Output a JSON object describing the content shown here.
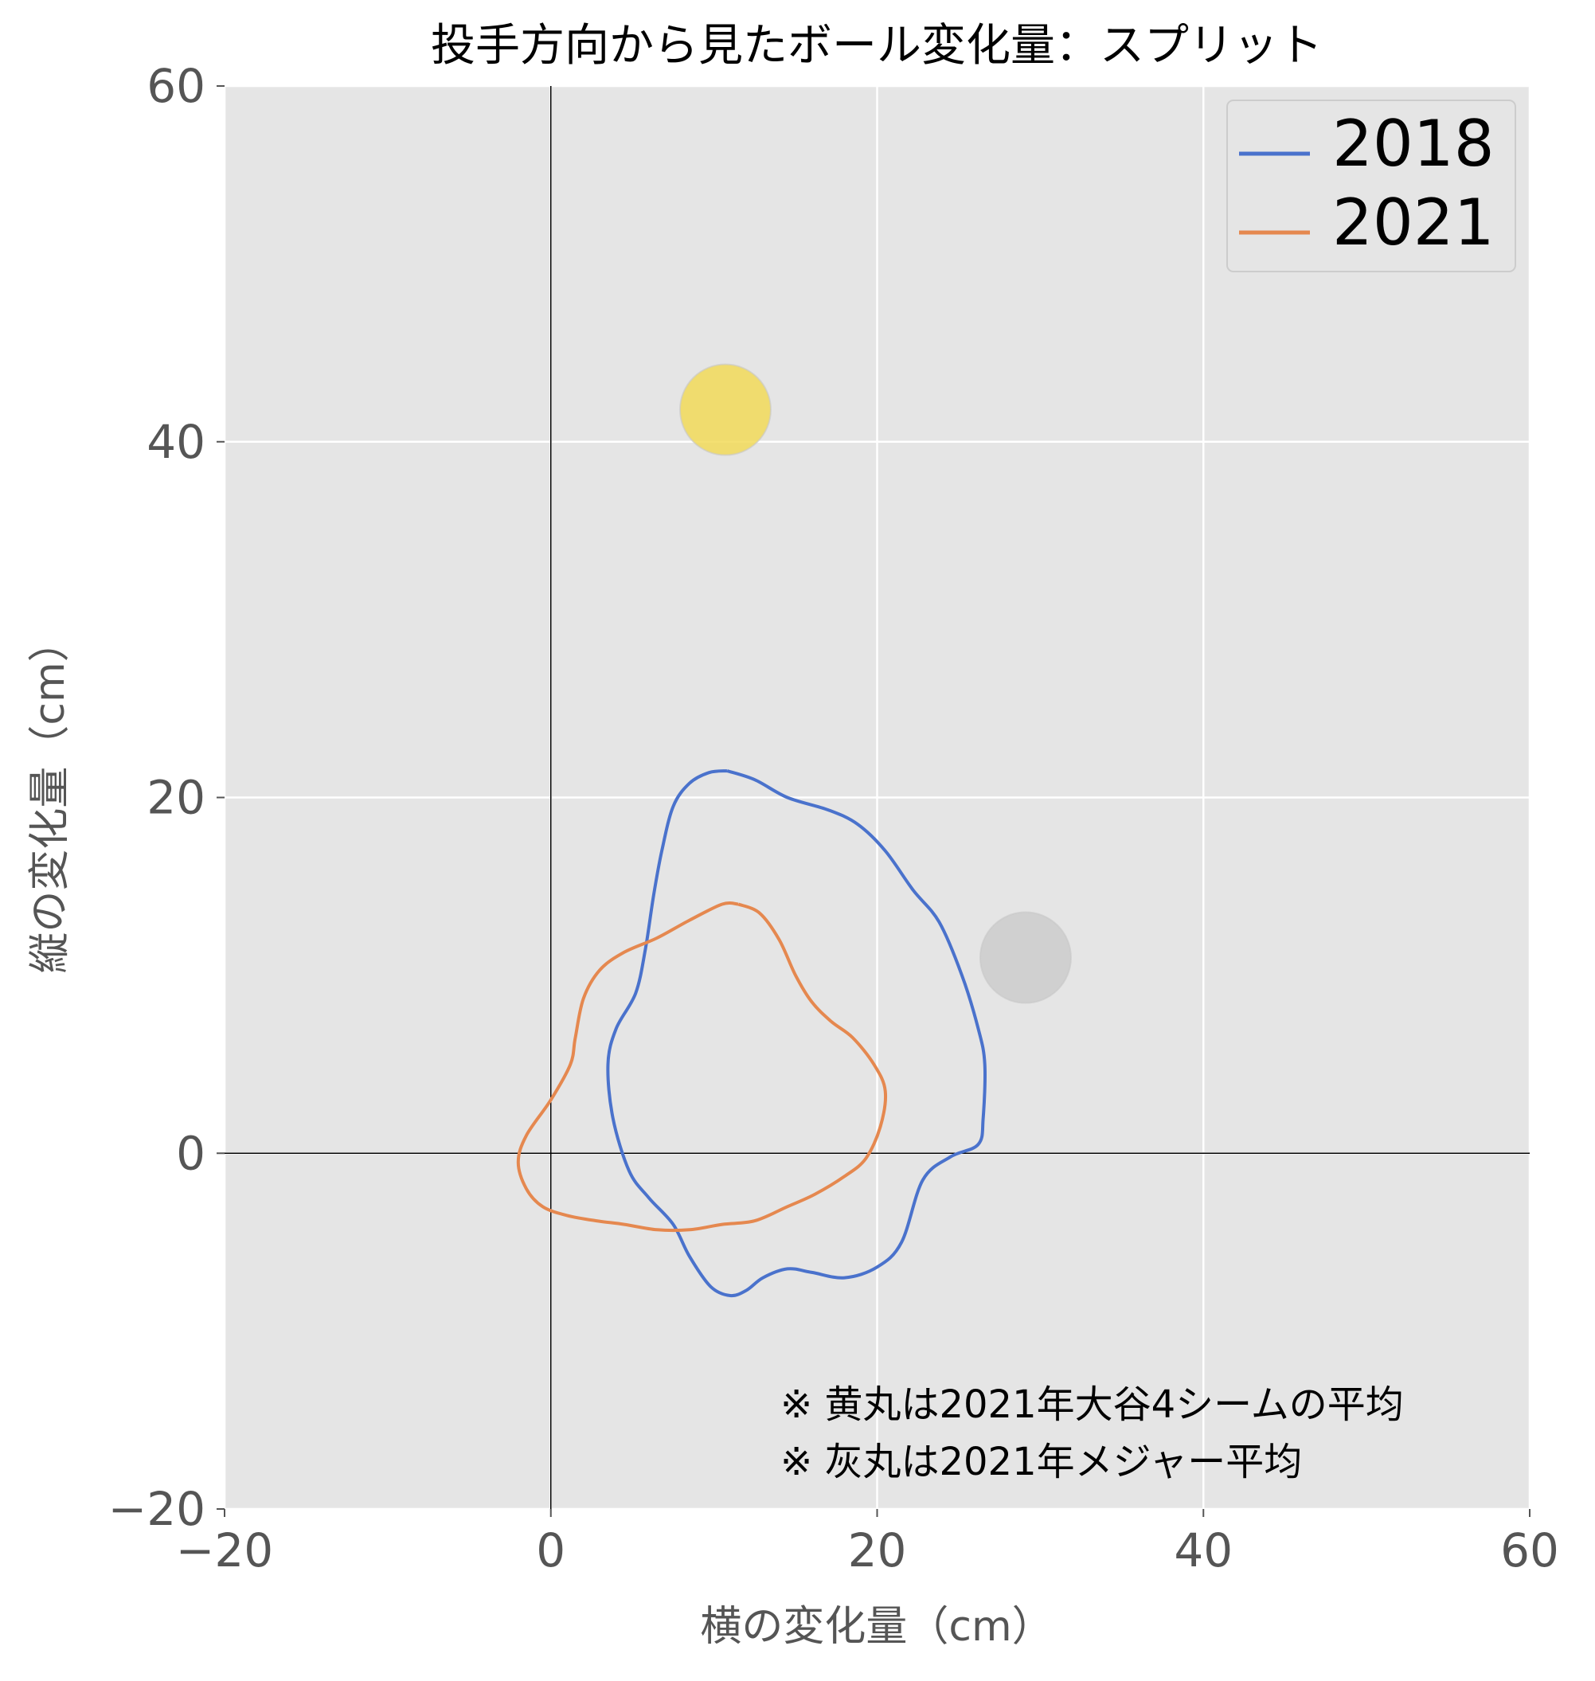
{
  "chart_data": {
    "type": "line",
    "title": "投手方向から見たボール変化量：スプリット",
    "xlabel": "横の変化量（cm）",
    "ylabel": "縦の変化量（cm）",
    "xlim": [
      -20,
      60
    ],
    "ylim": [
      -20,
      60
    ],
    "xticks": [
      -20,
      0,
      20,
      40,
      60
    ],
    "yticks": [
      -20,
      0,
      20,
      40,
      60
    ],
    "xtick_labels": [
      "−20",
      "0",
      "20",
      "40",
      "60"
    ],
    "ytick_labels": [
      "−20",
      "0",
      "20",
      "40",
      "60"
    ],
    "grid": true,
    "background": "#e5e5e5",
    "legend_position": "top-right",
    "series": [
      {
        "name": "2018",
        "color": "#4a72cc",
        "x": [
          10.8,
          12.5,
          14.5,
          17,
          18.8,
          20.5,
          22.2,
          23.8,
          25.2,
          26.2,
          26.6,
          26.5,
          26.2,
          24.5,
          22.8,
          21.5,
          20,
          18,
          16,
          14.5,
          13,
          12,
          11,
          9.8,
          8.5,
          7.5,
          6,
          4.8,
          3.8,
          3.5,
          4,
          5.2,
          5.8,
          6.3,
          6.8,
          7.5,
          8.5,
          9.7,
          10.8
        ],
        "y": [
          21.5,
          21,
          20,
          19.3,
          18.5,
          17,
          14.8,
          13,
          10,
          7,
          5,
          2,
          0.5,
          -0.2,
          -1.5,
          -5,
          -6.4,
          -7,
          -6.7,
          -6.5,
          -7,
          -7.7,
          -8,
          -7.5,
          -5.8,
          -4,
          -2.5,
          -1,
          2,
          5,
          7,
          9,
          11.5,
          14.5,
          17,
          19.5,
          20.8,
          21.4,
          21.5
        ]
      },
      {
        "name": "2021",
        "color": "#e5884f",
        "x": [
          11.5,
          12.8,
          14,
          15,
          16,
          17.2,
          18.5,
          19.8,
          20.5,
          20.2,
          19.3,
          18,
          16.2,
          14.5,
          12.5,
          10.5,
          8.5,
          6.5,
          4.5,
          2.8,
          1,
          -0.5,
          -1.5,
          -2,
          -1.5,
          0,
          1.2,
          1.5,
          2,
          3,
          4.5,
          6.5,
          8.5,
          10.5,
          11.5
        ],
        "y": [
          14,
          13.5,
          12,
          10,
          8.5,
          7.4,
          6.5,
          5,
          3.5,
          1.5,
          -0.3,
          -1.3,
          -2.3,
          -3,
          -3.8,
          -4,
          -4.3,
          -4.3,
          -4,
          -3.8,
          -3.5,
          -3,
          -2,
          -0.5,
          1,
          3,
          5,
          6.5,
          8.7,
          10.3,
          11.3,
          12.1,
          13.1,
          14,
          14
        ]
      }
    ],
    "markers": [
      {
        "label": "黄丸",
        "x": 10.7,
        "y": 41.8,
        "color": "#f2da59"
      },
      {
        "label": "灰丸",
        "x": 29.1,
        "y": 11,
        "color": "#cccccc"
      }
    ],
    "annotations": [
      "※ 黄丸は2021年大谷4シームの平均",
      "※ 灰丸は2021年メジャー平均"
    ]
  }
}
